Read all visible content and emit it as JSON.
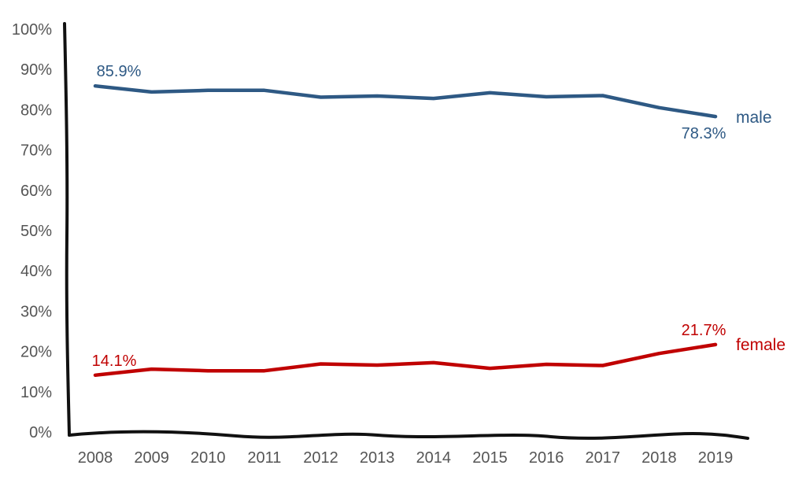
{
  "chart_data": {
    "type": "line",
    "title": "",
    "xlabel": "",
    "ylabel": "",
    "x": [
      "2008",
      "2009",
      "2010",
      "2011",
      "2012",
      "2013",
      "2014",
      "2015",
      "2016",
      "2017",
      "2018",
      "2019"
    ],
    "ylim": [
      0,
      100
    ],
    "yticks": [
      "0%",
      "10%",
      "20%",
      "30%",
      "40%",
      "50%",
      "60%",
      "70%",
      "80%",
      "90%",
      "100%"
    ],
    "grid": false,
    "legend": "inline-right",
    "series": [
      {
        "name": "male",
        "color": "#2e5984",
        "values": [
          85.9,
          84.4,
          84.8,
          84.8,
          83.1,
          83.4,
          82.8,
          84.2,
          83.2,
          83.5,
          80.5,
          78.3
        ],
        "labels": [
          {
            "index": 0,
            "text": "85.9%"
          },
          {
            "index": 11,
            "text": "78.3%"
          }
        ]
      },
      {
        "name": "female",
        "color": "#c00000",
        "values": [
          14.1,
          15.6,
          15.2,
          15.2,
          16.9,
          16.6,
          17.2,
          15.8,
          16.8,
          16.5,
          19.5,
          21.7
        ],
        "labels": [
          {
            "index": 0,
            "text": "14.1%"
          },
          {
            "index": 11,
            "text": "21.7%"
          }
        ]
      }
    ]
  }
}
